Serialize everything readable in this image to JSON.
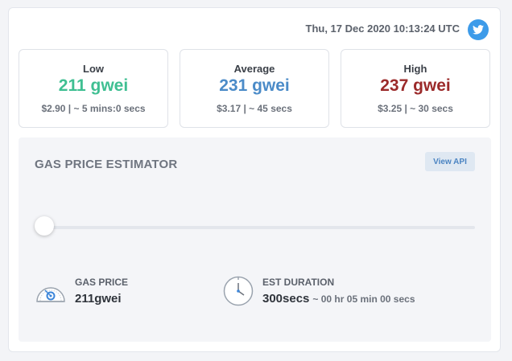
{
  "header": {
    "timestamp": "Thu, 17 Dec 2020 10:13:24 UTC",
    "share_icon": "twitter-icon"
  },
  "tiers": [
    {
      "title": "Low",
      "value": "211 gwei",
      "sub": "$2.90 | ~ 5 mins:0 secs",
      "color": "#3fbf92"
    },
    {
      "title": "Average",
      "value": "231 gwei",
      "sub": "$3.17 | ~ 45 secs",
      "color": "#4b8bc8"
    },
    {
      "title": "High",
      "value": "237 gwei",
      "sub": "$3.25 | ~ 30 secs",
      "color": "#9b2a2a"
    }
  ],
  "estimator": {
    "title": "GAS PRICE ESTIMATOR",
    "view_api_label": "View API",
    "slider_position": 0,
    "gas_price": {
      "label": "GAS PRICE",
      "value": "211gwei",
      "icon": "speedometer-icon"
    },
    "duration": {
      "label": "EST DURATION",
      "value": "300secs",
      "extra": "~ 00 hr 05 min 00 secs",
      "icon": "clock-icon"
    }
  }
}
